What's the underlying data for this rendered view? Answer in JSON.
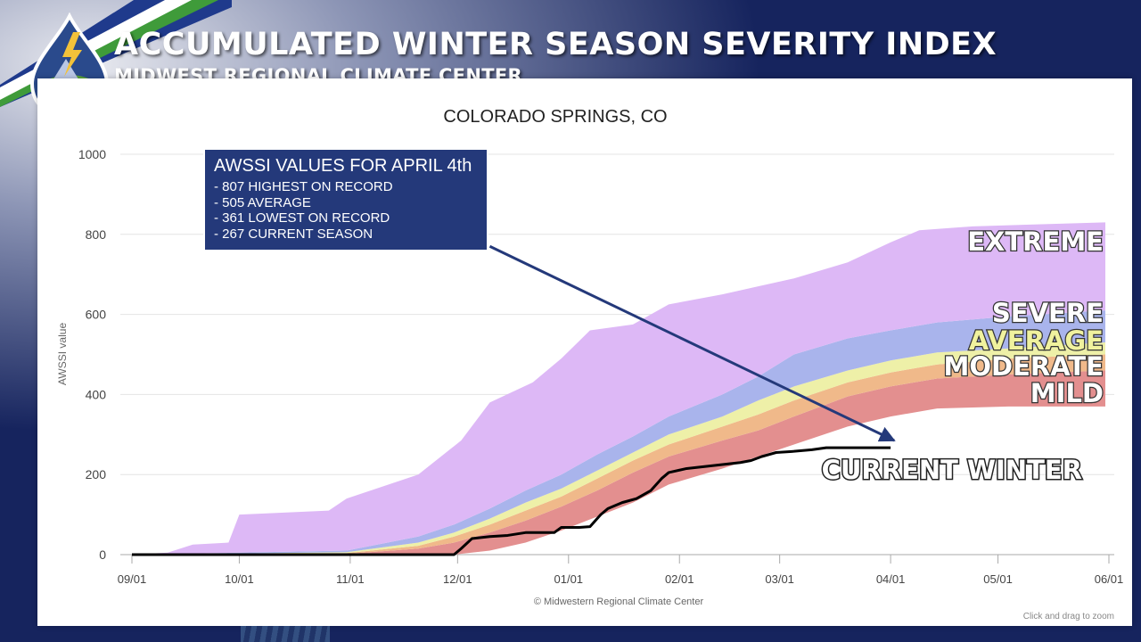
{
  "header": {
    "title": "ACCUMULATED WINTER SEASON SEVERITY INDEX",
    "subtitle": "MIDWEST REGIONAL CLIMATE CENTER"
  },
  "callout": {
    "title": "AWSSI VALUES FOR APRIL 4th",
    "lines": [
      "- 807 HIGHEST ON RECORD",
      "- 505 AVERAGE",
      "- 361 LOWEST ON RECORD",
      "- 267 CURRENT SEASON"
    ]
  },
  "chart_data": {
    "type": "area",
    "title": "COLORADO SPRINGS, CO",
    "ylabel": "AWSSI value",
    "xlabel": "",
    "ylim": [
      0,
      1000
    ],
    "yticks": [
      0,
      200,
      400,
      600,
      800,
      1000
    ],
    "xlim_days": [
      0,
      273
    ],
    "xticks": [
      {
        "label": "09/01",
        "day": 0
      },
      {
        "label": "10/01",
        "day": 30
      },
      {
        "label": "11/01",
        "day": 61
      },
      {
        "label": "12/01",
        "day": 91
      },
      {
        "label": "01/01",
        "day": 122
      },
      {
        "label": "02/01",
        "day": 153
      },
      {
        "label": "03/01",
        "day": 181
      },
      {
        "label": "04/01",
        "day": 212
      },
      {
        "label": "05/01",
        "day": 242
      },
      {
        "label": "06/01",
        "day": 273
      }
    ],
    "credit": "© Midwestern Regional Climate Center",
    "zoom_hint": "Click and drag to zoom",
    "bands": [
      {
        "name": "MILD",
        "color": "#e38f8f",
        "label_color": "#ffffff",
        "lower": [
          [
            0,
            0
          ],
          [
            60,
            0
          ],
          [
            80,
            0
          ],
          [
            90,
            0
          ],
          [
            100,
            10
          ],
          [
            110,
            30
          ],
          [
            120,
            60
          ],
          [
            130,
            95
          ],
          [
            140,
            130
          ],
          [
            150,
            175
          ],
          [
            165,
            215
          ],
          [
            175,
            245
          ],
          [
            185,
            275
          ],
          [
            200,
            320
          ],
          [
            212,
            345
          ],
          [
            225,
            365
          ],
          [
            245,
            370
          ],
          [
            272,
            370
          ]
        ],
        "upper": [
          [
            0,
            0
          ],
          [
            60,
            2
          ],
          [
            80,
            15
          ],
          [
            90,
            30
          ],
          [
            100,
            55
          ],
          [
            110,
            85
          ],
          [
            120,
            120
          ],
          [
            130,
            160
          ],
          [
            140,
            205
          ],
          [
            150,
            245
          ],
          [
            165,
            285
          ],
          [
            175,
            310
          ],
          [
            185,
            345
          ],
          [
            200,
            395
          ],
          [
            212,
            420
          ],
          [
            225,
            440
          ],
          [
            245,
            450
          ],
          [
            272,
            460
          ]
        ]
      },
      {
        "name": "MODERATE",
        "color": "#f0b98a",
        "label_color": "#ffffff",
        "lower": [
          [
            0,
            0
          ],
          [
            60,
            2
          ],
          [
            80,
            15
          ],
          [
            90,
            30
          ],
          [
            100,
            55
          ],
          [
            110,
            85
          ],
          [
            120,
            120
          ],
          [
            130,
            160
          ],
          [
            140,
            205
          ],
          [
            150,
            245
          ],
          [
            165,
            285
          ],
          [
            175,
            310
          ],
          [
            185,
            345
          ],
          [
            200,
            395
          ],
          [
            212,
            420
          ],
          [
            225,
            440
          ],
          [
            245,
            450
          ],
          [
            272,
            460
          ]
        ],
        "upper": [
          [
            0,
            0
          ],
          [
            60,
            4
          ],
          [
            80,
            22
          ],
          [
            90,
            45
          ],
          [
            100,
            75
          ],
          [
            110,
            110
          ],
          [
            120,
            145
          ],
          [
            130,
            190
          ],
          [
            140,
            235
          ],
          [
            150,
            275
          ],
          [
            165,
            320
          ],
          [
            175,
            350
          ],
          [
            185,
            385
          ],
          [
            200,
            430
          ],
          [
            212,
            455
          ],
          [
            225,
            475
          ],
          [
            245,
            490
          ],
          [
            272,
            500
          ]
        ]
      },
      {
        "name": "AVERAGE",
        "color": "#eef0a8",
        "label_color": "#f0f29e",
        "lower": [
          [
            0,
            0
          ],
          [
            60,
            4
          ],
          [
            80,
            22
          ],
          [
            90,
            45
          ],
          [
            100,
            75
          ],
          [
            110,
            110
          ],
          [
            120,
            145
          ],
          [
            130,
            190
          ],
          [
            140,
            235
          ],
          [
            150,
            275
          ],
          [
            165,
            320
          ],
          [
            175,
            350
          ],
          [
            185,
            385
          ],
          [
            200,
            430
          ],
          [
            212,
            455
          ],
          [
            225,
            475
          ],
          [
            245,
            490
          ],
          [
            272,
            500
          ]
        ],
        "upper": [
          [
            0,
            0
          ],
          [
            60,
            6
          ],
          [
            80,
            30
          ],
          [
            90,
            55
          ],
          [
            100,
            90
          ],
          [
            110,
            130
          ],
          [
            120,
            165
          ],
          [
            130,
            210
          ],
          [
            140,
            255
          ],
          [
            150,
            300
          ],
          [
            165,
            345
          ],
          [
            175,
            385
          ],
          [
            185,
            420
          ],
          [
            200,
            460
          ],
          [
            212,
            485
          ],
          [
            225,
            505
          ],
          [
            245,
            515
          ],
          [
            272,
            530
          ]
        ]
      },
      {
        "name": "SEVERE",
        "color": "#a9b4ec",
        "label_color": "#ffffff",
        "lower": [
          [
            0,
            0
          ],
          [
            60,
            6
          ],
          [
            80,
            30
          ],
          [
            90,
            55
          ],
          [
            100,
            90
          ],
          [
            110,
            130
          ],
          [
            120,
            165
          ],
          [
            130,
            210
          ],
          [
            140,
            255
          ],
          [
            150,
            300
          ],
          [
            165,
            345
          ],
          [
            175,
            385
          ],
          [
            185,
            420
          ],
          [
            200,
            460
          ],
          [
            212,
            485
          ],
          [
            225,
            505
          ],
          [
            245,
            515
          ],
          [
            272,
            530
          ]
        ],
        "upper": [
          [
            0,
            0
          ],
          [
            60,
            10
          ],
          [
            80,
            45
          ],
          [
            90,
            75
          ],
          [
            100,
            115
          ],
          [
            110,
            160
          ],
          [
            120,
            200
          ],
          [
            130,
            250
          ],
          [
            140,
            295
          ],
          [
            150,
            345
          ],
          [
            165,
            400
          ],
          [
            175,
            445
          ],
          [
            185,
            500
          ],
          [
            200,
            540
          ],
          [
            212,
            560
          ],
          [
            225,
            580
          ],
          [
            245,
            595
          ],
          [
            272,
            610
          ]
        ]
      },
      {
        "name": "EXTREME",
        "color": "#ddb8f6",
        "label_color": "#ffffff",
        "lower": [
          [
            0,
            0
          ],
          [
            60,
            10
          ],
          [
            80,
            45
          ],
          [
            90,
            75
          ],
          [
            100,
            115
          ],
          [
            110,
            160
          ],
          [
            120,
            200
          ],
          [
            130,
            250
          ],
          [
            140,
            295
          ],
          [
            150,
            345
          ],
          [
            165,
            400
          ],
          [
            175,
            445
          ],
          [
            185,
            500
          ],
          [
            200,
            540
          ],
          [
            212,
            560
          ],
          [
            225,
            580
          ],
          [
            245,
            595
          ],
          [
            272,
            610
          ]
        ],
        "upper": [
          [
            0,
            0
          ],
          [
            10,
            5
          ],
          [
            17,
            25
          ],
          [
            27,
            30
          ],
          [
            30,
            100
          ],
          [
            55,
            110
          ],
          [
            60,
            140
          ],
          [
            80,
            200
          ],
          [
            92,
            285
          ],
          [
            100,
            380
          ],
          [
            112,
            430
          ],
          [
            120,
            490
          ],
          [
            128,
            560
          ],
          [
            140,
            575
          ],
          [
            150,
            625
          ],
          [
            165,
            650
          ],
          [
            175,
            670
          ],
          [
            185,
            690
          ],
          [
            200,
            730
          ],
          [
            212,
            780
          ],
          [
            220,
            810
          ],
          [
            235,
            820
          ],
          [
            272,
            830
          ]
        ]
      }
    ],
    "current_season": {
      "name": "CURRENT WINTER",
      "color": "#000000",
      "points": [
        [
          0,
          0
        ],
        [
          90,
          0
        ],
        [
          92,
          15
        ],
        [
          95,
          40
        ],
        [
          100,
          45
        ],
        [
          105,
          48
        ],
        [
          110,
          55
        ],
        [
          118,
          55
        ],
        [
          120,
          68
        ],
        [
          125,
          68
        ],
        [
          128,
          70
        ],
        [
          131,
          100
        ],
        [
          133,
          115
        ],
        [
          137,
          130
        ],
        [
          141,
          140
        ],
        [
          145,
          160
        ],
        [
          148,
          190
        ],
        [
          150,
          205
        ],
        [
          155,
          215
        ],
        [
          160,
          220
        ],
        [
          165,
          225
        ],
        [
          170,
          230
        ],
        [
          173,
          235
        ],
        [
          176,
          245
        ],
        [
          180,
          255
        ],
        [
          185,
          258
        ],
        [
          190,
          262
        ],
        [
          194,
          267
        ],
        [
          212,
          267
        ]
      ]
    },
    "arrow": {
      "from_day": 100,
      "from_value": 770,
      "to_day": 213,
      "to_value": 285
    }
  }
}
